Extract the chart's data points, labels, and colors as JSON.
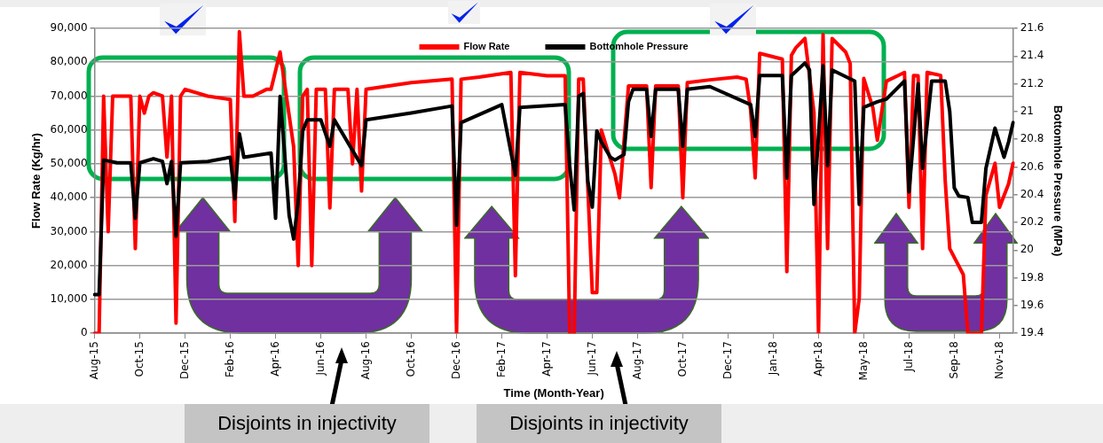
{
  "chart_data": {
    "type": "line",
    "xlabel": "Time (Month-Year)",
    "ylabel": "Flow Rate (Kg/hr)",
    "y2label": "Bottomhole Pressure (MPa)",
    "categories": [
      "Aug-15",
      null,
      null,
      null,
      null,
      null,
      null,
      null,
      null,
      null,
      "Oct-15",
      null,
      null,
      null,
      null,
      null,
      null,
      null,
      null,
      null,
      "Dec-15",
      null,
      null,
      null,
      null,
      null,
      null,
      null,
      null,
      null,
      "Feb-16",
      null,
      null,
      null,
      null,
      null,
      null,
      null,
      null,
      null,
      "Apr-16",
      null,
      null,
      null,
      null,
      null,
      null,
      null,
      null,
      null,
      "Jun-16",
      null,
      null,
      null,
      null,
      null,
      null,
      null,
      null,
      null,
      "Aug-16",
      null,
      null,
      null,
      null,
      null,
      null,
      null,
      null,
      null,
      "Oct-16",
      null,
      null,
      null,
      null,
      null,
      null,
      null,
      null,
      null,
      "Dec-16",
      null,
      null,
      null,
      null,
      null,
      null,
      null,
      null,
      null,
      "Feb-17",
      null,
      null,
      null,
      null,
      null,
      null,
      null,
      null,
      null,
      "Apr-17",
      null,
      null,
      null,
      null,
      null,
      null,
      null,
      null,
      null,
      "Jun-17",
      null,
      null,
      null,
      null,
      null,
      null,
      null,
      null,
      null,
      "Aug-17",
      null,
      null,
      null,
      null,
      null,
      null,
      null,
      null,
      null,
      "Oct-17",
      null,
      null,
      null,
      null,
      null,
      null,
      null,
      null,
      null,
      "Dec-17",
      null,
      null,
      null,
      null,
      null,
      null,
      null,
      null,
      null,
      "Jan-18",
      null,
      null,
      null,
      null,
      null,
      null,
      null,
      null,
      null,
      "Apr-18",
      null,
      null,
      null,
      null,
      null,
      null,
      null,
      null,
      null,
      "May-18",
      null,
      null,
      null,
      null,
      null,
      null,
      null,
      null,
      null,
      "Jul-18",
      null,
      null,
      null,
      null,
      null,
      null,
      null,
      null,
      null,
      "Sep-18",
      null,
      null,
      null,
      null,
      null,
      null,
      null,
      null,
      null,
      "Nov-18",
      null,
      null,
      null
    ],
    "ylim": [
      0,
      90000
    ],
    "yticks": [
      0,
      {
        "value": 10000,
        "label": "10,000"
      },
      {
        "value": 20000,
        "label": "20,000"
      },
      {
        "value": 30000,
        "label": "30,000"
      },
      {
        "value": 40000,
        "label": "40,000"
      },
      {
        "value": 50000,
        "label": "50,000"
      },
      {
        "value": 60000,
        "label": "60,000"
      },
      {
        "value": 70000,
        "label": "70,000"
      },
      {
        "value": 80000,
        "label": "80,000"
      },
      {
        "value": 90000,
        "label": "90,000"
      }
    ],
    "y2lim": [
      19.4,
      21.6
    ],
    "y2ticks": [
      19.4,
      19.6,
      19.8,
      20,
      20.2,
      20.4,
      20.6,
      20.8,
      21,
      21.2,
      21.4,
      21.6
    ],
    "grid": "y",
    "legend": "top",
    "marker": "none",
    "line_style": "solid",
    "series": [
      {
        "name": "Flow Rate",
        "color": "#ff0000",
        "values": [
          0,
          0,
          70000,
          30000,
          70000,
          null,
          null,
          null,
          70000,
          25000,
          70000,
          65000,
          70000,
          71000,
          null,
          70000,
          52000,
          70000,
          3000,
          70000,
          72000,
          null,
          null,
          null,
          null,
          70000,
          null,
          null,
          null,
          null,
          69000,
          33000,
          89000,
          70000,
          null,
          70000,
          null,
          null,
          72000,
          72000,
          null,
          83000,
          null,
          null,
          55000,
          20000,
          70000,
          72000,
          20000,
          72000,
          null,
          72000,
          37000,
          72000,
          null,
          null,
          72000,
          50000,
          72000,
          42000,
          72000,
          null,
          null,
          null,
          null,
          73000,
          null,
          null,
          null,
          null,
          74000,
          null,
          null,
          null,
          null,
          null,
          null,
          null,
          null,
          75000,
          0,
          75000,
          null,
          null,
          null,
          75600,
          null,
          null,
          null,
          null,
          null,
          null,
          77000,
          17000,
          77000,
          null,
          null,
          null,
          null,
          null,
          76000,
          null,
          null,
          null,
          76000,
          0,
          0,
          75000,
          75000,
          null,
          12000,
          12000,
          60000,
          null,
          null,
          47000,
          40000,
          null,
          73000,
          null,
          null,
          null,
          73000,
          43000,
          73000,
          null,
          null,
          null,
          null,
          73000,
          40000,
          74000,
          null,
          null,
          null,
          null,
          74800,
          null,
          null,
          null,
          null,
          null,
          75600,
          null,
          75000,
          65800,
          45900,
          82600,
          null,
          null,
          null,
          null,
          80900,
          18200,
          82000,
          84300,
          null,
          87000,
          null,
          65000,
          0,
          88200,
          25000,
          87000,
          null,
          null,
          83000,
          79600,
          0,
          10400,
          75200,
          null,
          66600,
          57000,
          null,
          74400,
          null,
          null,
          null,
          77000,
          37200,
          76100,
          76000,
          25000,
          77000,
          null,
          null,
          76100,
          45000,
          25000,
          null,
          null,
          17300,
          0,
          null,
          null,
          0,
          40700,
          null,
          50200,
          37200,
          null,
          44100,
          50200
        ]
      },
      {
        "name": "Bottomhole Pressure",
        "color": "#000000",
        "axis": "y2",
        "values": [
          19.68,
          19.68,
          20.65,
          null,
          null,
          20.63,
          null,
          null,
          20.63,
          20.23,
          20.63,
          null,
          null,
          20.66,
          null,
          20.64,
          20.48,
          20.64,
          20.1,
          20.63,
          null,
          null,
          null,
          null,
          null,
          20.64,
          null,
          null,
          null,
          null,
          20.67,
          20.37,
          20.84,
          20.67,
          null,
          null,
          null,
          null,
          null,
          20.7,
          20.23,
          21.11,
          20.7,
          20.25,
          20.08,
          20.35,
          20.86,
          20.94,
          null,
          null,
          20.94,
          null,
          20.75,
          20.94,
          null,
          null,
          null,
          null,
          null,
          20.61,
          20.94,
          null,
          null,
          null,
          null,
          null,
          null,
          null,
          null,
          null,
          20.99,
          null,
          null,
          null,
          null,
          null,
          null,
          null,
          null,
          21.04,
          20.18,
          20.92,
          null,
          null,
          null,
          null,
          null,
          null,
          null,
          null,
          21.05,
          null,
          null,
          20.54,
          21.03,
          null,
          null,
          null,
          null,
          null,
          null,
          null,
          null,
          null,
          21.05,
          20.61,
          20.29,
          21.11,
          21.13,
          20.5,
          20.31,
          20.86,
          20.78,
          null,
          20.67,
          20.65,
          null,
          20.69,
          21.07,
          21.16,
          null,
          null,
          21.16,
          20.82,
          21.16,
          null,
          null,
          null,
          null,
          21.16,
          20.75,
          21.16,
          null,
          null,
          null,
          null,
          21.18,
          null,
          null,
          null,
          null,
          null,
          null,
          null,
          null,
          21.05,
          20.82,
          21.26,
          null,
          null,
          null,
          null,
          21.26,
          20.52,
          21.26,
          null,
          null,
          21.35,
          21.3,
          20.33,
          null,
          21.33,
          20.61,
          21.3,
          null,
          null,
          null,
          null,
          21.22,
          20.33,
          21.03,
          null,
          null,
          21.07,
          null,
          21.09,
          null,
          null,
          null,
          21.22,
          20.42,
          null,
          21.2,
          20.59,
          null,
          21.22,
          null,
          null,
          21.22,
          21.0,
          20.45,
          20.39,
          null,
          20.38,
          20.2,
          null,
          20.2,
          20.59,
          null,
          20.88,
          null,
          20.67,
          20.78,
          20.92
        ]
      }
    ],
    "annotations": [
      "Disjoints in injectivity",
      "Disjoints in injectivity"
    ]
  }
}
